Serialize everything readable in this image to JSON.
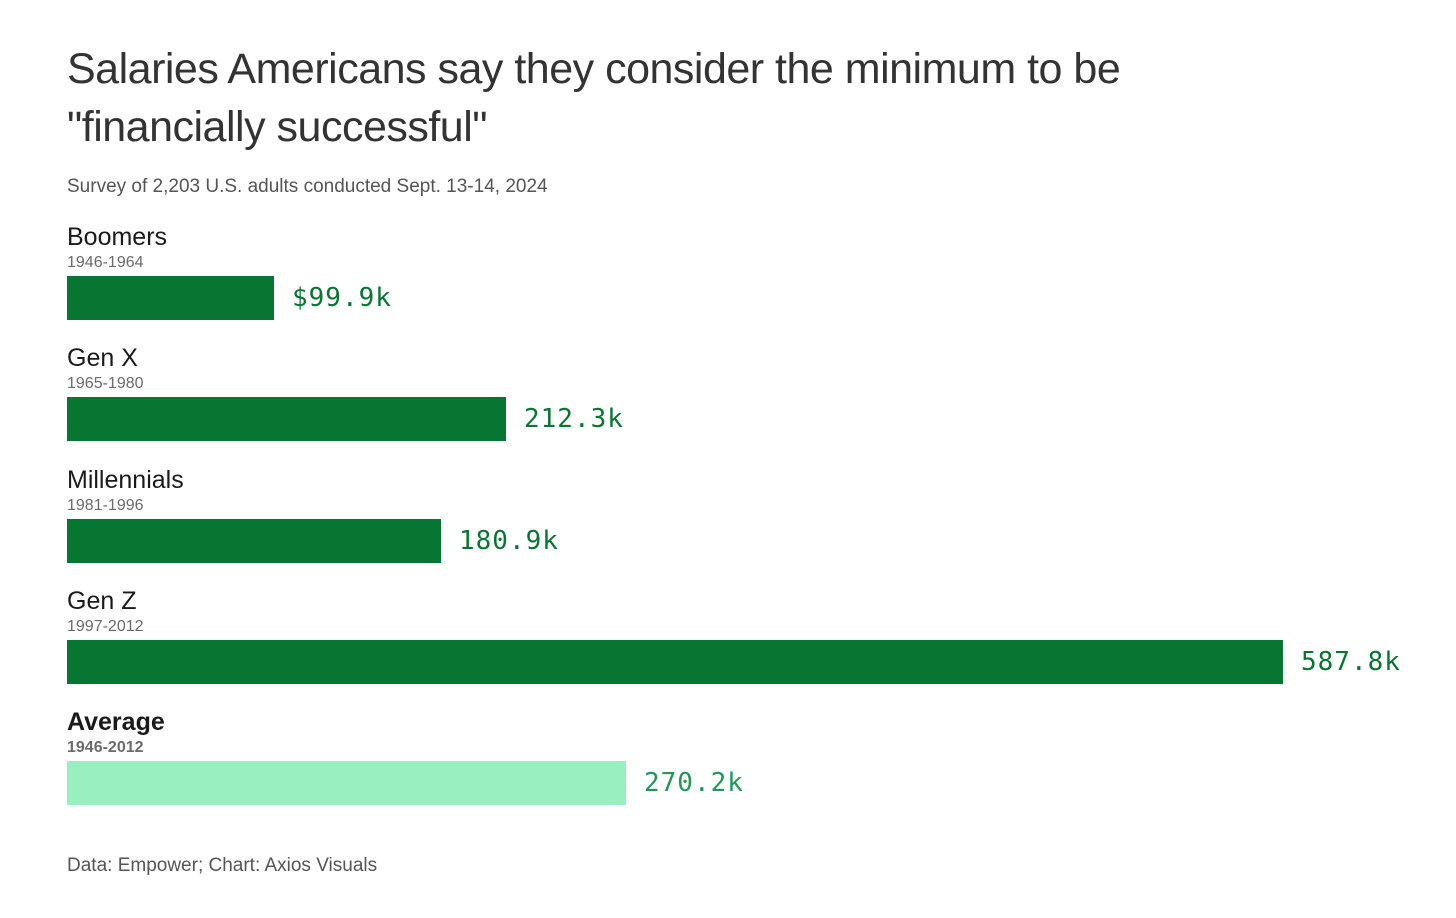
{
  "chart_data": {
    "type": "bar",
    "orientation": "horizontal",
    "title": "Salaries Americans say they consider the minimum to be \"financially successful\"",
    "subtitle": "Survey of 2,203 U.S. adults conducted Sept. 13-14, 2024",
    "source": "Data: Empower; Chart: Axios Visuals",
    "xlim": [
      0,
      587.8
    ],
    "grid": false,
    "colors": {
      "bar": "#077632",
      "bar_label": "#077632",
      "average_bar": "#9aefc1",
      "average_label": "#1a9a55"
    },
    "categories": [
      "Boomers",
      "Gen X",
      "Millennials",
      "Gen Z",
      "Average"
    ],
    "years": [
      "1946-1964",
      "1965-1980",
      "1981-1996",
      "1997-2012",
      "1946-2012"
    ],
    "values": [
      99.9,
      212.3,
      180.9,
      587.8,
      270.2
    ],
    "value_labels": [
      "$99.9k",
      "212.3k",
      "180.9k",
      "587.8k",
      "270.2k"
    ],
    "highlight": [
      false,
      false,
      false,
      false,
      true
    ]
  }
}
